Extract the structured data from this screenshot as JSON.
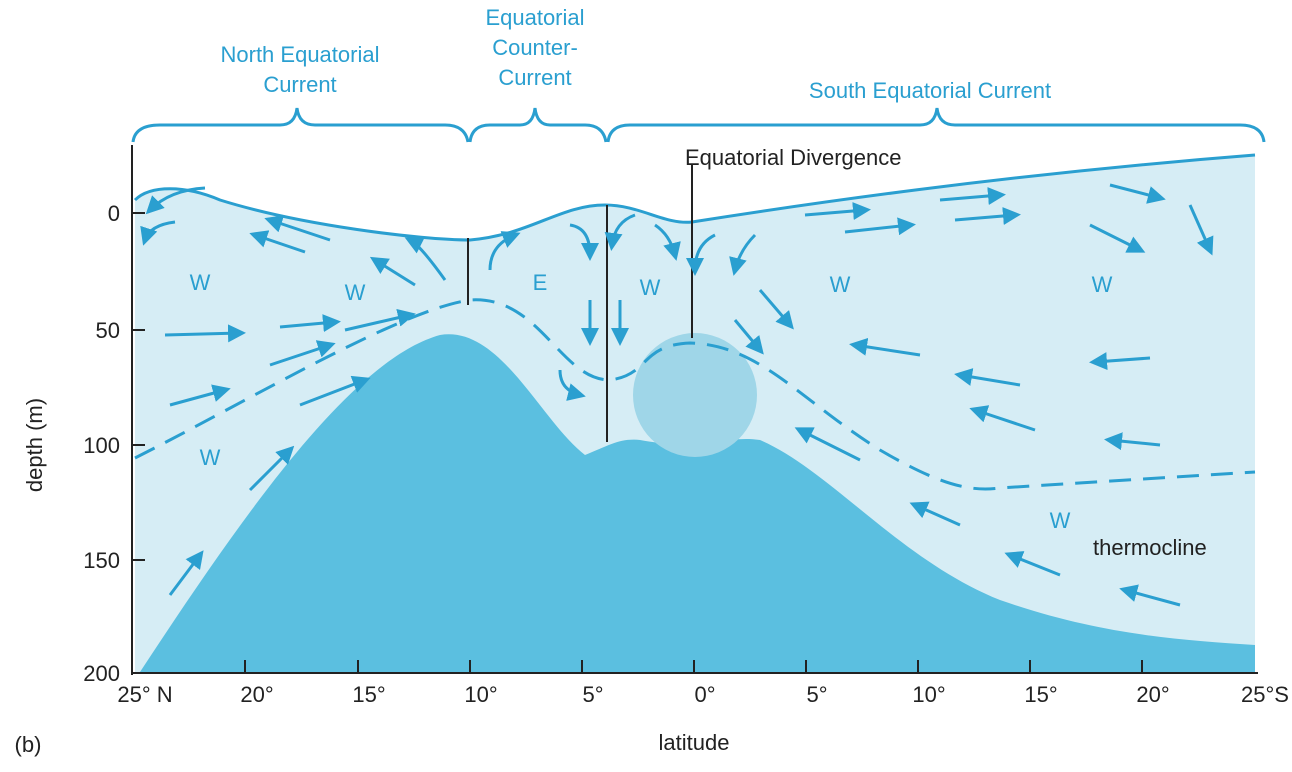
{
  "labels": {
    "panel": "(b)",
    "y_axis": "depth (m)",
    "x_axis": "latitude"
  },
  "currents": [
    {
      "lines": [
        "North Equatorial",
        "Current"
      ]
    },
    {
      "lines": [
        "Equatorial",
        "Counter-",
        "Current"
      ]
    },
    {
      "lines": [
        "South Equatorial Current"
      ]
    }
  ],
  "annotations": {
    "divergence": "Equatorial Divergence",
    "thermocline": "thermocline"
  },
  "water_labels": [
    "W",
    "W",
    "E",
    "W",
    "W",
    "W",
    "W",
    "W"
  ],
  "y_ticks": [
    "0",
    "50",
    "100",
    "150",
    "200"
  ],
  "x_ticks": [
    "25° N",
    "20°",
    "15°",
    "10°",
    "5°",
    "0°",
    "5°",
    "10°",
    "15°",
    "20°",
    "25°S"
  ]
}
